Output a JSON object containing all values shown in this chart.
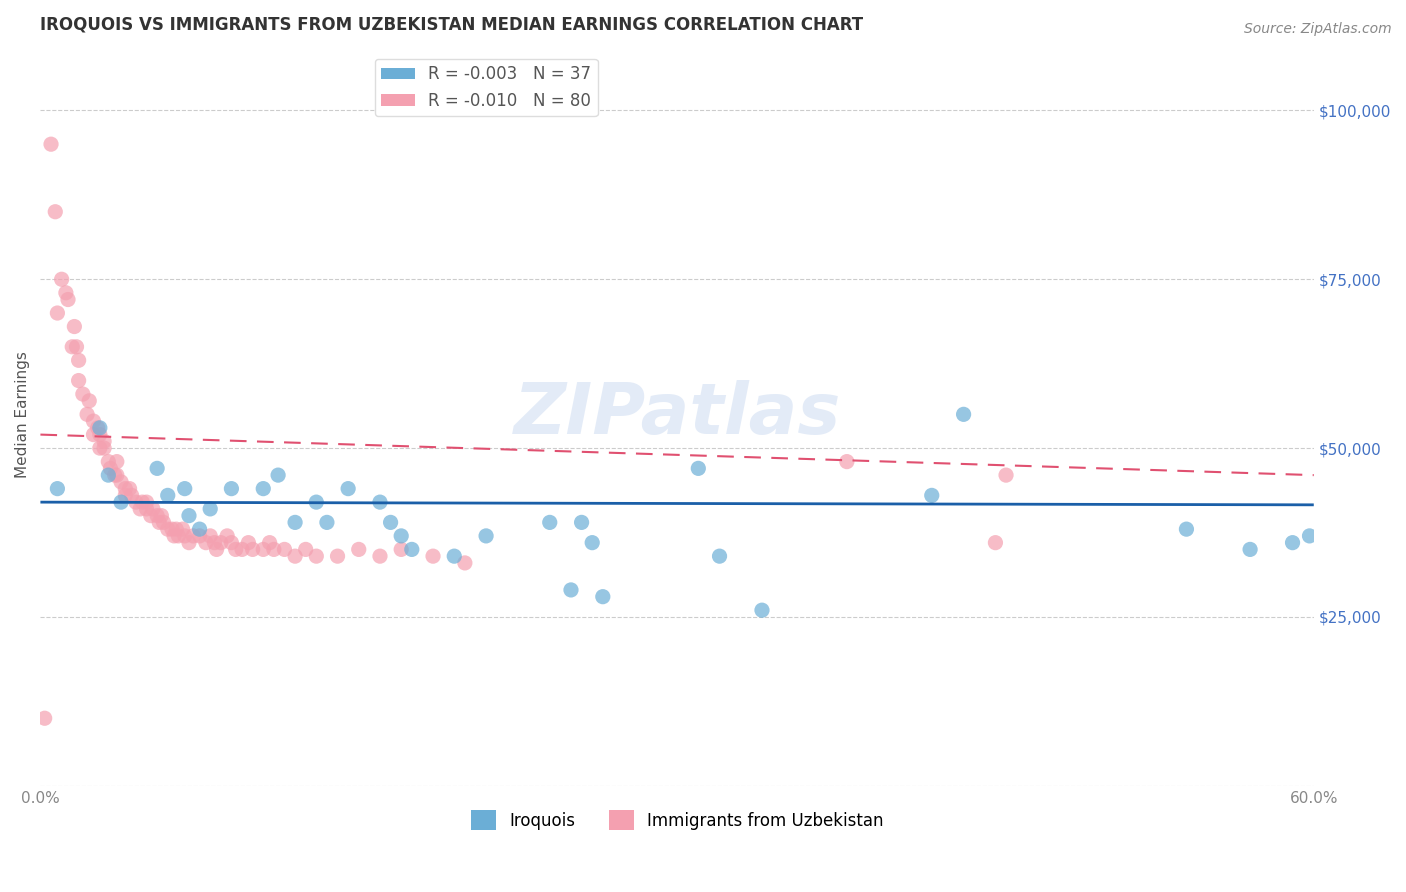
{
  "title": "IROQUOIS VS IMMIGRANTS FROM UZBEKISTAN MEDIAN EARNINGS CORRELATION CHART",
  "source": "Source: ZipAtlas.com",
  "ylabel": "Median Earnings",
  "watermark": "ZIPatlas",
  "xlim": [
    0.0,
    0.6
  ],
  "ylim": [
    0,
    110000
  ],
  "yticks": [
    0,
    25000,
    50000,
    75000,
    100000
  ],
  "xticks": [
    0.0,
    0.1,
    0.2,
    0.3,
    0.4,
    0.5,
    0.6
  ],
  "blue_color": "#6baed6",
  "pink_color": "#f4a0b0",
  "blue_line_color": "#1a5fa8",
  "pink_line_color": "#e05070",
  "grid_color": "#cccccc",
  "background_color": "#ffffff",
  "legend_R_blue": "R = -0.003",
  "legend_N_blue": "N = 37",
  "legend_R_pink": "R = -0.010",
  "legend_N_pink": "N = 80",
  "iroquois_label": "Iroquois",
  "uzbekistan_label": "Immigrants from Uzbekistan",
  "blue_scatter_x": [
    0.008,
    0.028,
    0.032,
    0.038,
    0.055,
    0.06,
    0.068,
    0.07,
    0.075,
    0.08,
    0.09,
    0.105,
    0.112,
    0.12,
    0.13,
    0.135,
    0.145,
    0.16,
    0.165,
    0.17,
    0.175,
    0.195,
    0.21,
    0.24,
    0.25,
    0.255,
    0.26,
    0.265,
    0.31,
    0.32,
    0.34,
    0.42,
    0.435,
    0.54,
    0.57,
    0.59,
    0.598
  ],
  "blue_scatter_y": [
    44000,
    53000,
    46000,
    42000,
    47000,
    43000,
    44000,
    40000,
    38000,
    41000,
    44000,
    44000,
    46000,
    39000,
    42000,
    39000,
    44000,
    42000,
    39000,
    37000,
    35000,
    34000,
    37000,
    39000,
    29000,
    39000,
    36000,
    28000,
    47000,
    34000,
    26000,
    43000,
    55000,
    38000,
    35000,
    36000,
    37000
  ],
  "pink_scatter_x": [
    0.002,
    0.005,
    0.007,
    0.008,
    0.01,
    0.012,
    0.013,
    0.015,
    0.016,
    0.017,
    0.018,
    0.018,
    0.02,
    0.022,
    0.023,
    0.025,
    0.025,
    0.027,
    0.028,
    0.028,
    0.03,
    0.03,
    0.032,
    0.033,
    0.035,
    0.036,
    0.036,
    0.038,
    0.04,
    0.04,
    0.042,
    0.043,
    0.045,
    0.047,
    0.048,
    0.05,
    0.05,
    0.052,
    0.053,
    0.055,
    0.056,
    0.057,
    0.058,
    0.06,
    0.062,
    0.063,
    0.064,
    0.065,
    0.067,
    0.068,
    0.07,
    0.072,
    0.075,
    0.078,
    0.08,
    0.082,
    0.083,
    0.085,
    0.088,
    0.09,
    0.092,
    0.095,
    0.098,
    0.1,
    0.105,
    0.108,
    0.11,
    0.115,
    0.12,
    0.125,
    0.13,
    0.14,
    0.15,
    0.16,
    0.17,
    0.185,
    0.2,
    0.38,
    0.45,
    0.455
  ],
  "pink_scatter_y": [
    10000,
    95000,
    85000,
    70000,
    75000,
    73000,
    72000,
    65000,
    68000,
    65000,
    63000,
    60000,
    58000,
    55000,
    57000,
    54000,
    52000,
    53000,
    52000,
    50000,
    51000,
    50000,
    48000,
    47000,
    46000,
    48000,
    46000,
    45000,
    44000,
    43000,
    44000,
    43000,
    42000,
    41000,
    42000,
    41000,
    42000,
    40000,
    41000,
    40000,
    39000,
    40000,
    39000,
    38000,
    38000,
    37000,
    38000,
    37000,
    38000,
    37000,
    36000,
    37000,
    37000,
    36000,
    37000,
    36000,
    35000,
    36000,
    37000,
    36000,
    35000,
    35000,
    36000,
    35000,
    35000,
    36000,
    35000,
    35000,
    34000,
    35000,
    34000,
    34000,
    35000,
    34000,
    35000,
    34000,
    33000,
    48000,
    36000,
    46000
  ],
  "blue_trend_x": [
    0.0,
    0.6
  ],
  "blue_trend_y": [
    42000,
    41600
  ],
  "pink_trend_x": [
    0.0,
    0.6
  ],
  "pink_trend_y": [
    52000,
    46000
  ],
  "title_fontsize": 12,
  "axis_label_fontsize": 11,
  "tick_fontsize": 11,
  "legend_fontsize": 12,
  "source_fontsize": 10
}
